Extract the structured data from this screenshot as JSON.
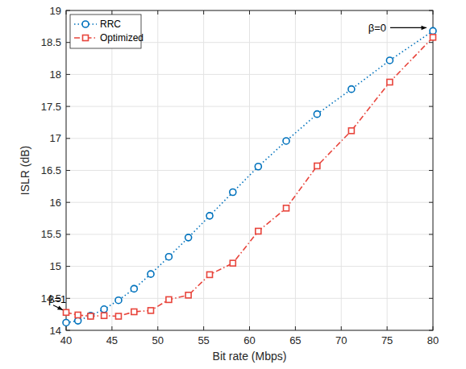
{
  "chart_data": {
    "type": "line",
    "x_label": "Bit rate (Mbps)",
    "y_label": "ISLR (dB)",
    "xlim": [
      40,
      80
    ],
    "ylim": [
      14,
      19
    ],
    "xticks": [
      40,
      45,
      50,
      55,
      60,
      65,
      70,
      75,
      80
    ],
    "yticks": [
      14,
      14.5,
      15,
      15.5,
      16,
      16.5,
      17,
      17.5,
      18,
      18.5,
      19
    ],
    "grid": true,
    "legend": "top-left",
    "series": [
      {
        "name": "RRC",
        "color": "#0072bd",
        "marker": "circle",
        "line_style": "dotted",
        "x": [
          40,
          41.29,
          42.67,
          44.14,
          45.71,
          47.41,
          49.23,
          51.2,
          53.33,
          55.65,
          58.18,
          60.95,
          64,
          67.37,
          71.11,
          75.29,
          80
        ],
        "values": [
          14.12,
          14.15,
          14.23,
          14.33,
          14.47,
          14.65,
          14.88,
          15.15,
          15.45,
          15.79,
          16.16,
          16.56,
          16.96,
          17.38,
          17.77,
          18.22,
          18.68
        ]
      },
      {
        "name": "Optimized",
        "color": "#e8453c",
        "marker": "square",
        "line_style": "dashdot",
        "x": [
          40,
          41.29,
          42.67,
          44.14,
          45.71,
          47.41,
          49.23,
          51.2,
          53.33,
          55.65,
          58.18,
          60.95,
          64,
          67.37,
          71.11,
          75.29,
          80
        ],
        "values": [
          14.28,
          14.24,
          14.22,
          14.23,
          14.22,
          14.29,
          14.31,
          14.48,
          14.55,
          14.87,
          15.05,
          15.55,
          15.91,
          16.57,
          17.12,
          17.88,
          18.58
        ]
      }
    ],
    "annotations": [
      {
        "text": "β=1",
        "x": 40,
        "y": 14.28
      },
      {
        "text": "β=0",
        "x": 80,
        "y": 18.68
      }
    ]
  }
}
